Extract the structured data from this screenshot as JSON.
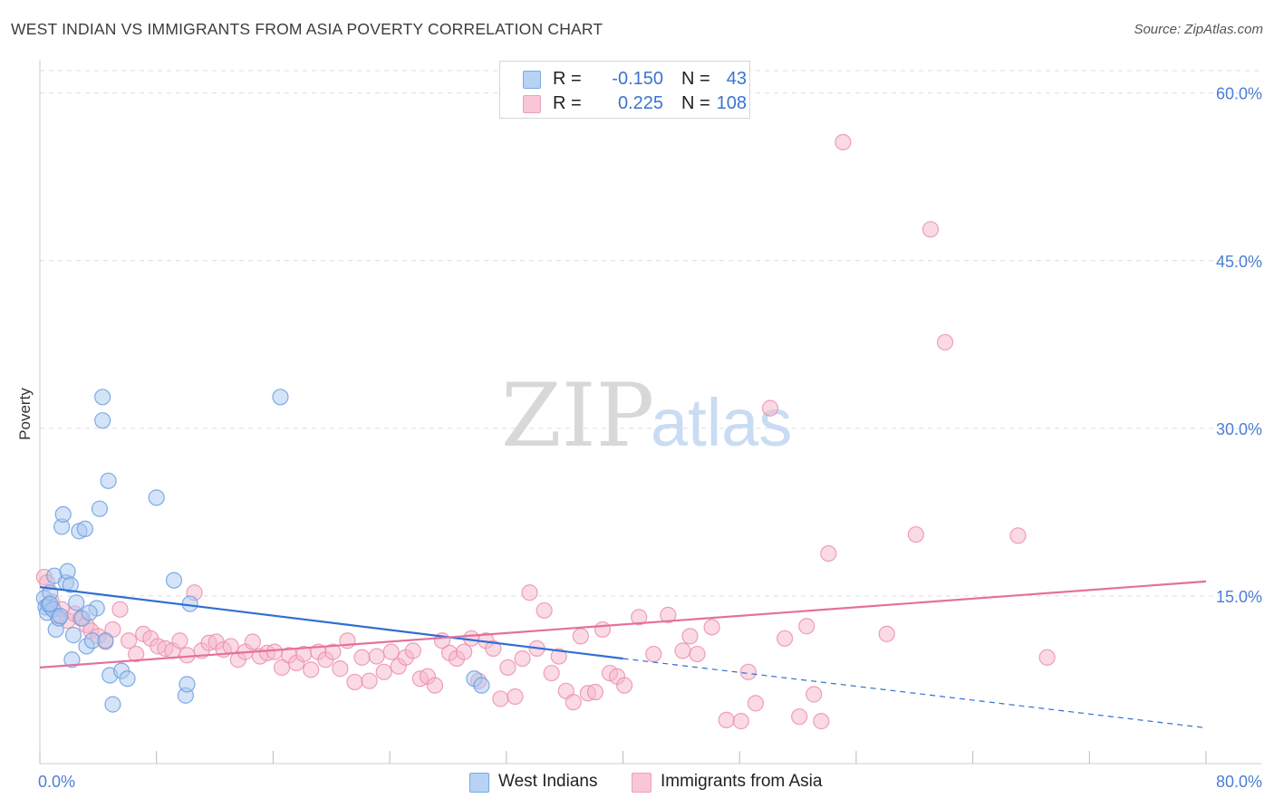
{
  "title": "WEST INDIAN VS IMMIGRANTS FROM ASIA POVERTY CORRELATION CHART",
  "source": "Source: ZipAtlas.com",
  "watermark": {
    "zip": "ZIP",
    "atlas": "atlas"
  },
  "colors": {
    "blue_fill": "#a9c8f0",
    "blue_stroke": "#6b9fe0",
    "blue_line": "#2f6fd1",
    "pink_fill": "#f5b6c9",
    "pink_stroke": "#ec8fae",
    "pink_line": "#e5709a",
    "tick_label": "#4a7fd4",
    "grid": "#dddddd"
  },
  "legend": [
    {
      "r_label": "R =",
      "r_value": "-0.150",
      "n_label": "N =",
      "n_value": "43",
      "series": "blue"
    },
    {
      "r_label": "R =",
      "r_value": "0.225",
      "n_label": "N =",
      "n_value": "108",
      "series": "pink"
    }
  ],
  "bottom_legend": [
    {
      "label": "West Indians",
      "series": "blue"
    },
    {
      "label": "Immigrants from Asia",
      "series": "pink"
    }
  ],
  "chart_data": {
    "type": "scatter",
    "title": "WEST INDIAN VS IMMIGRANTS FROM ASIA POVERTY CORRELATION CHART",
    "xlabel": "",
    "ylabel": "Poverty",
    "xlim": [
      0,
      80
    ],
    "ylim": [
      0,
      62
    ],
    "x_tick_labels": [
      {
        "value": 0,
        "label": "0.0%"
      },
      {
        "value": 80,
        "label": "80.0%"
      }
    ],
    "x_minor_ticks": [
      0,
      8,
      16,
      24,
      32,
      40,
      48,
      56,
      64,
      72,
      80
    ],
    "y_ticks": [
      {
        "value": 15,
        "label": "15.0%"
      },
      {
        "value": 30,
        "label": "30.0%"
      },
      {
        "value": 45,
        "label": "45.0%"
      },
      {
        "value": 60,
        "label": "60.0%"
      }
    ],
    "grid": true,
    "legend_position": "top-center",
    "series": [
      {
        "name": "West Indians",
        "color": "blue",
        "points": [
          [
            0.3,
            14.8
          ],
          [
            0.4,
            14.0
          ],
          [
            0.5,
            13.5
          ],
          [
            0.6,
            14.2
          ],
          [
            0.7,
            15.3
          ],
          [
            0.9,
            13.8
          ],
          [
            1.0,
            16.8
          ],
          [
            1.1,
            12.0
          ],
          [
            1.3,
            13.0
          ],
          [
            1.5,
            21.2
          ],
          [
            1.6,
            22.3
          ],
          [
            1.8,
            16.2
          ],
          [
            1.9,
            17.2
          ],
          [
            2.1,
            16.0
          ],
          [
            2.2,
            9.3
          ],
          [
            2.3,
            11.5
          ],
          [
            2.5,
            14.4
          ],
          [
            2.7,
            20.8
          ],
          [
            2.9,
            13.0
          ],
          [
            3.1,
            21.0
          ],
          [
            3.2,
            10.5
          ],
          [
            3.6,
            11.0
          ],
          [
            3.9,
            13.9
          ],
          [
            4.1,
            22.8
          ],
          [
            4.3,
            32.8
          ],
          [
            4.5,
            11.0
          ],
          [
            4.7,
            25.3
          ],
          [
            4.8,
            7.9
          ],
          [
            5.0,
            5.3
          ],
          [
            4.3,
            30.7
          ],
          [
            5.6,
            8.3
          ],
          [
            6.0,
            7.6
          ],
          [
            8.0,
            23.8
          ],
          [
            9.2,
            16.4
          ],
          [
            10.0,
            6.1
          ],
          [
            10.1,
            7.1
          ],
          [
            10.3,
            14.3
          ],
          [
            16.5,
            32.8
          ],
          [
            29.8,
            7.6
          ],
          [
            30.3,
            7.0
          ],
          [
            0.7,
            14.3
          ],
          [
            1.4,
            13.2
          ],
          [
            3.4,
            13.5
          ]
        ]
      },
      {
        "name": "Immigrants from Asia",
        "color": "pink",
        "points": [
          [
            0.3,
            16.7
          ],
          [
            0.8,
            14.5
          ],
          [
            1.2,
            13.2
          ],
          [
            1.5,
            13.8
          ],
          [
            1.9,
            12.8
          ],
          [
            2.4,
            13.4
          ],
          [
            2.8,
            13.0
          ],
          [
            3.2,
            12.4
          ],
          [
            3.5,
            11.9
          ],
          [
            4.0,
            11.4
          ],
          [
            4.5,
            10.9
          ],
          [
            5.0,
            12.0
          ],
          [
            5.5,
            13.8
          ],
          [
            6.1,
            11.0
          ],
          [
            6.6,
            9.8
          ],
          [
            7.1,
            11.6
          ],
          [
            7.6,
            11.2
          ],
          [
            8.1,
            10.5
          ],
          [
            8.6,
            10.3
          ],
          [
            9.1,
            10.1
          ],
          [
            9.6,
            11.0
          ],
          [
            10.1,
            9.7
          ],
          [
            10.6,
            15.3
          ],
          [
            11.1,
            10.1
          ],
          [
            11.6,
            10.8
          ],
          [
            12.1,
            10.9
          ],
          [
            12.6,
            10.2
          ],
          [
            13.1,
            10.5
          ],
          [
            13.6,
            9.3
          ],
          [
            14.1,
            10.0
          ],
          [
            14.6,
            10.9
          ],
          [
            15.1,
            9.6
          ],
          [
            15.6,
            9.9
          ],
          [
            16.1,
            10.0
          ],
          [
            16.6,
            8.6
          ],
          [
            17.1,
            9.7
          ],
          [
            17.6,
            9.0
          ],
          [
            18.1,
            9.8
          ],
          [
            18.6,
            8.4
          ],
          [
            19.1,
            10.0
          ],
          [
            19.6,
            9.3
          ],
          [
            20.1,
            10.0
          ],
          [
            20.6,
            8.5
          ],
          [
            21.1,
            11.0
          ],
          [
            21.6,
            7.3
          ],
          [
            22.1,
            9.5
          ],
          [
            22.6,
            7.4
          ],
          [
            23.1,
            9.6
          ],
          [
            23.6,
            8.2
          ],
          [
            24.1,
            10.0
          ],
          [
            24.6,
            8.7
          ],
          [
            25.1,
            9.5
          ],
          [
            25.6,
            10.1
          ],
          [
            26.1,
            7.6
          ],
          [
            26.6,
            7.8
          ],
          [
            27.1,
            7.0
          ],
          [
            27.6,
            11.0
          ],
          [
            28.1,
            9.9
          ],
          [
            28.6,
            9.4
          ],
          [
            29.1,
            10.0
          ],
          [
            29.6,
            11.2
          ],
          [
            30.1,
            7.4
          ],
          [
            30.6,
            11.0
          ],
          [
            31.1,
            10.3
          ],
          [
            31.6,
            5.8
          ],
          [
            32.1,
            8.6
          ],
          [
            32.6,
            6.0
          ],
          [
            33.1,
            9.4
          ],
          [
            33.6,
            15.3
          ],
          [
            34.1,
            10.3
          ],
          [
            34.6,
            13.7
          ],
          [
            35.1,
            8.1
          ],
          [
            35.6,
            9.6
          ],
          [
            36.1,
            6.5
          ],
          [
            36.6,
            5.5
          ],
          [
            37.1,
            11.4
          ],
          [
            37.6,
            6.3
          ],
          [
            38.1,
            6.4
          ],
          [
            38.6,
            12.0
          ],
          [
            39.1,
            8.1
          ],
          [
            39.6,
            7.8
          ],
          [
            40.1,
            7.0
          ],
          [
            41.1,
            13.1
          ],
          [
            42.1,
            9.8
          ],
          [
            43.1,
            13.3
          ],
          [
            44.1,
            10.1
          ],
          [
            44.6,
            11.4
          ],
          [
            45.1,
            9.8
          ],
          [
            46.1,
            12.2
          ],
          [
            47.1,
            3.9
          ],
          [
            48.1,
            3.8
          ],
          [
            48.6,
            8.2
          ],
          [
            49.1,
            5.4
          ],
          [
            50.1,
            31.8
          ],
          [
            51.1,
            11.2
          ],
          [
            52.1,
            4.2
          ],
          [
            52.6,
            12.3
          ],
          [
            53.1,
            6.2
          ],
          [
            53.6,
            3.8
          ],
          [
            54.1,
            18.8
          ],
          [
            55.1,
            55.6
          ],
          [
            58.1,
            11.6
          ],
          [
            60.1,
            20.5
          ],
          [
            61.1,
            47.8
          ],
          [
            62.1,
            37.7
          ],
          [
            67.1,
            20.4
          ],
          [
            69.1,
            9.5
          ],
          [
            0.5,
            16.2
          ]
        ]
      }
    ],
    "trend_lines": [
      {
        "series": "West Indians",
        "x0": 0,
        "y0": 15.8,
        "x1": 40,
        "y1": 9.4,
        "dashed_x1": 80,
        "dashed_y1": 3.2
      },
      {
        "series": "Immigrants from Asia",
        "x0": 0,
        "y0": 8.6,
        "x1": 80,
        "y1": 16.3
      }
    ]
  }
}
